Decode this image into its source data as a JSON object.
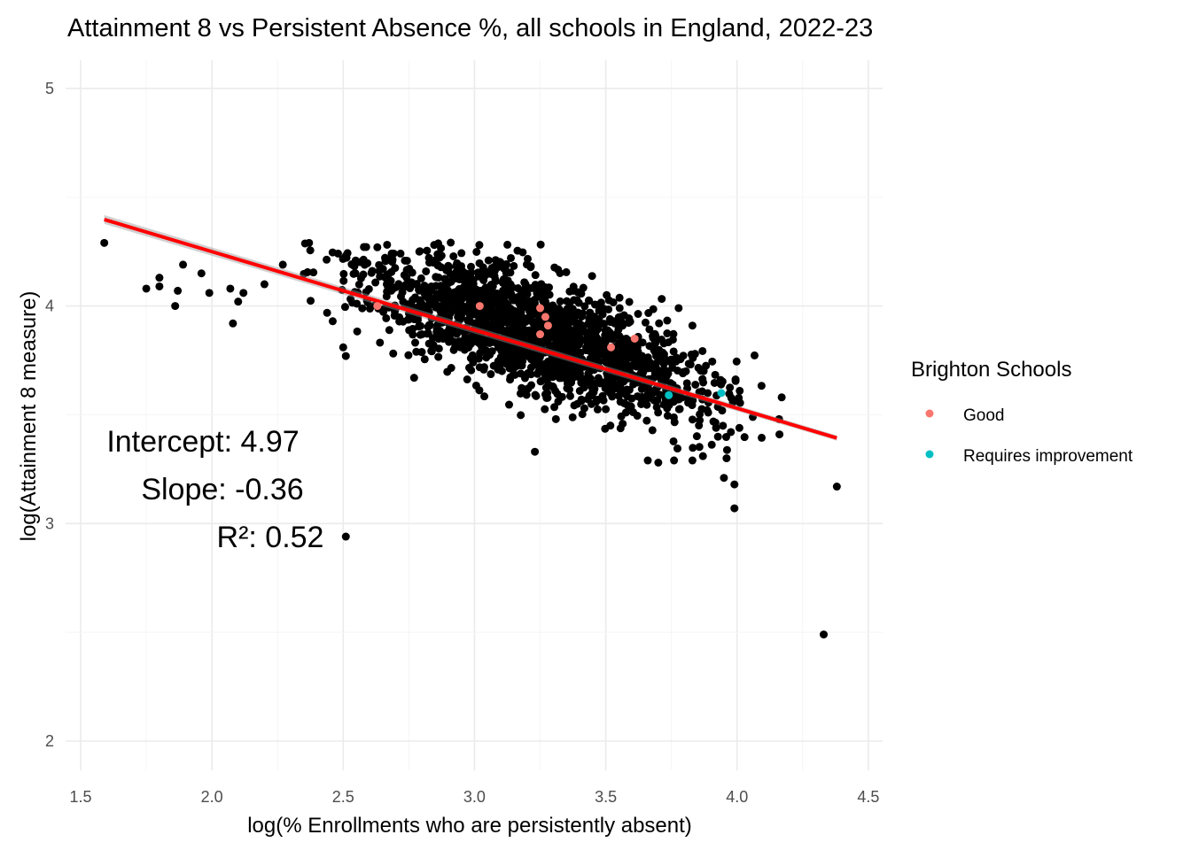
{
  "chart_data": {
    "type": "scatter",
    "title": "Attainment 8 vs Persistent Absence %, all schools in England, 2022-23",
    "xlabel": "log(% Enrollments who are persistently absent)",
    "ylabel": "log(Attainment 8 measure)",
    "xlim": [
      1.5,
      4.5
    ],
    "ylim": [
      2,
      5
    ],
    "x_ticks": [
      "1.5",
      "2.0",
      "2.5",
      "3.0",
      "3.5",
      "4.0",
      "4.5"
    ],
    "y_ticks": [
      "2",
      "3",
      "4",
      "5"
    ],
    "grid": true,
    "legend_position": "right",
    "legend_title": "Brighton Schools",
    "annotations": {
      "intercept": "Intercept: 4.97",
      "slope": "Slope: -0.36",
      "r2": "R²: 0.52"
    },
    "regression": {
      "intercept": 4.97,
      "slope": -0.36,
      "x_range": [
        1.59,
        4.38
      ],
      "color": "#ff0000"
    },
    "background_colour": "#000000",
    "background_cloud": {
      "center": [
        3.25,
        3.8
      ],
      "spread": [
        0.33,
        0.13
      ],
      "count": 1800
    },
    "background_points": [
      [
        1.59,
        4.29
      ],
      [
        1.75,
        4.08
      ],
      [
        1.8,
        4.13
      ],
      [
        1.8,
        4.09
      ],
      [
        1.86,
        4.0
      ],
      [
        1.87,
        4.07
      ],
      [
        1.89,
        4.19
      ],
      [
        1.96,
        4.15
      ],
      [
        1.99,
        4.06
      ],
      [
        2.07,
        4.08
      ],
      [
        2.08,
        3.92
      ],
      [
        2.1,
        4.02
      ],
      [
        2.12,
        4.06
      ],
      [
        2.2,
        4.1
      ],
      [
        2.27,
        4.19
      ],
      [
        2.37,
        4.29
      ],
      [
        2.46,
        3.93
      ],
      [
        2.5,
        3.81
      ],
      [
        2.51,
        3.77
      ],
      [
        2.51,
        2.94
      ],
      [
        2.63,
        4.27
      ],
      [
        2.77,
        3.67
      ],
      [
        3.23,
        3.33
      ],
      [
        3.31,
        3.48
      ],
      [
        3.66,
        3.29
      ],
      [
        3.7,
        3.28
      ],
      [
        3.76,
        3.29
      ],
      [
        3.83,
        3.29
      ],
      [
        3.83,
        3.91
      ],
      [
        3.84,
        3.78
      ],
      [
        3.87,
        3.31
      ],
      [
        3.89,
        3.51
      ],
      [
        3.92,
        3.44
      ],
      [
        3.95,
        3.21
      ],
      [
        3.96,
        3.3
      ],
      [
        3.99,
        3.18
      ],
      [
        3.99,
        3.07
      ],
      [
        4.01,
        3.61
      ],
      [
        4.06,
        3.49
      ],
      [
        4.16,
        3.48
      ],
      [
        4.17,
        3.58
      ],
      [
        4.33,
        2.49
      ],
      [
        4.38,
        3.17
      ]
    ],
    "series": [
      {
        "name": "Good",
        "color": "#f8766d",
        "points": [
          [
            2.63,
            4.0
          ],
          [
            3.02,
            4.0
          ],
          [
            3.25,
            3.99
          ],
          [
            3.27,
            3.95
          ],
          [
            3.28,
            3.91
          ],
          [
            3.25,
            3.87
          ],
          [
            3.52,
            3.81
          ],
          [
            3.61,
            3.85
          ]
        ]
      },
      {
        "name": "Requires improvement",
        "color": "#00bfc4",
        "points": [
          [
            3.74,
            3.59
          ],
          [
            3.94,
            3.6
          ]
        ]
      }
    ]
  }
}
